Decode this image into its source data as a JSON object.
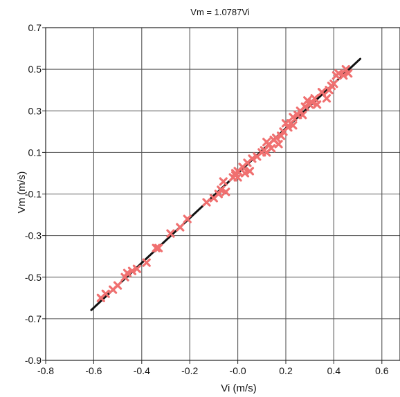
{
  "chart_data": {
    "type": "scatter",
    "title": "Vm = 1.0787Vi",
    "xlabel": "Vi (m/s)",
    "ylabel": "Vm (m/s)",
    "xlim": [
      -0.8,
      0.6
    ],
    "ylim": [
      -0.9,
      0.7
    ],
    "x_ticks": [
      -0.8,
      -0.6,
      -0.4,
      -0.2,
      0.0,
      0.2,
      0.4,
      0.6
    ],
    "x_tick_labels": [
      "-0.8",
      "-0.6",
      "-0.4",
      "-0.2",
      "-0.0",
      "0.2",
      "0.4",
      "0.6"
    ],
    "y_ticks": [
      0.7,
      0.5,
      0.3,
      0.1,
      -0.1,
      -0.3,
      -0.5,
      -0.7,
      -0.9
    ],
    "y_tick_labels": [
      "0.7",
      "0.5",
      "0.3",
      "0.1",
      "-0.1",
      "-0.3",
      "-0.5",
      "-0.7",
      "-0.9"
    ],
    "grid": true,
    "marker_color": "#f07070",
    "line_color": "#111111",
    "fit_line": {
      "slope": 1.0787,
      "intercept": 0.0,
      "x_range": [
        -0.61,
        0.51
      ]
    },
    "points": [
      {
        "x": -0.57,
        "y": -0.6
      },
      {
        "x": -0.55,
        "y": -0.58
      },
      {
        "x": -0.52,
        "y": -0.56
      },
      {
        "x": -0.5,
        "y": -0.54
      },
      {
        "x": -0.47,
        "y": -0.5
      },
      {
        "x": -0.46,
        "y": -0.48
      },
      {
        "x": -0.44,
        "y": -0.47
      },
      {
        "x": -0.42,
        "y": -0.46
      },
      {
        "x": -0.38,
        "y": -0.43
      },
      {
        "x": -0.34,
        "y": -0.36
      },
      {
        "x": -0.33,
        "y": -0.36
      },
      {
        "x": -0.28,
        "y": -0.29
      },
      {
        "x": -0.24,
        "y": -0.26
      },
      {
        "x": -0.21,
        "y": -0.22
      },
      {
        "x": -0.13,
        "y": -0.14
      },
      {
        "x": -0.1,
        "y": -0.12
      },
      {
        "x": -0.08,
        "y": -0.1
      },
      {
        "x": -0.07,
        "y": -0.08
      },
      {
        "x": -0.06,
        "y": -0.04
      },
      {
        "x": -0.05,
        "y": -0.09
      },
      {
        "x": -0.02,
        "y": -0.02
      },
      {
        "x": -0.01,
        "y": -0.01
      },
      {
        "x": -0.01,
        "y": 0.0
      },
      {
        "x": 0.0,
        "y": -0.02
      },
      {
        "x": 0.0,
        "y": 0.01
      },
      {
        "x": 0.02,
        "y": 0.03
      },
      {
        "x": 0.03,
        "y": 0.0
      },
      {
        "x": 0.04,
        "y": 0.05
      },
      {
        "x": 0.05,
        "y": 0.01
      },
      {
        "x": 0.06,
        "y": 0.07
      },
      {
        "x": 0.08,
        "y": 0.08
      },
      {
        "x": 0.1,
        "y": 0.1
      },
      {
        "x": 0.11,
        "y": 0.11
      },
      {
        "x": 0.12,
        "y": 0.1
      },
      {
        "x": 0.12,
        "y": 0.15
      },
      {
        "x": 0.13,
        "y": 0.14
      },
      {
        "x": 0.14,
        "y": 0.12
      },
      {
        "x": 0.15,
        "y": 0.16
      },
      {
        "x": 0.16,
        "y": 0.17
      },
      {
        "x": 0.17,
        "y": 0.14
      },
      {
        "x": 0.18,
        "y": 0.18
      },
      {
        "x": 0.19,
        "y": 0.2
      },
      {
        "x": 0.2,
        "y": 0.24
      },
      {
        "x": 0.21,
        "y": 0.22
      },
      {
        "x": 0.22,
        "y": 0.24
      },
      {
        "x": 0.23,
        "y": 0.23
      },
      {
        "x": 0.23,
        "y": 0.27
      },
      {
        "x": 0.25,
        "y": 0.28
      },
      {
        "x": 0.26,
        "y": 0.3
      },
      {
        "x": 0.27,
        "y": 0.28
      },
      {
        "x": 0.28,
        "y": 0.32
      },
      {
        "x": 0.29,
        "y": 0.35
      },
      {
        "x": 0.3,
        "y": 0.33
      },
      {
        "x": 0.31,
        "y": 0.34
      },
      {
        "x": 0.32,
        "y": 0.36
      },
      {
        "x": 0.33,
        "y": 0.33
      },
      {
        "x": 0.35,
        "y": 0.39
      },
      {
        "x": 0.37,
        "y": 0.36
      },
      {
        "x": 0.38,
        "y": 0.4
      },
      {
        "x": 0.39,
        "y": 0.42
      },
      {
        "x": 0.4,
        "y": 0.43
      },
      {
        "x": 0.41,
        "y": 0.47
      },
      {
        "x": 0.42,
        "y": 0.48
      },
      {
        "x": 0.44,
        "y": 0.47
      },
      {
        "x": 0.45,
        "y": 0.5
      },
      {
        "x": 0.46,
        "y": 0.48
      }
    ]
  }
}
